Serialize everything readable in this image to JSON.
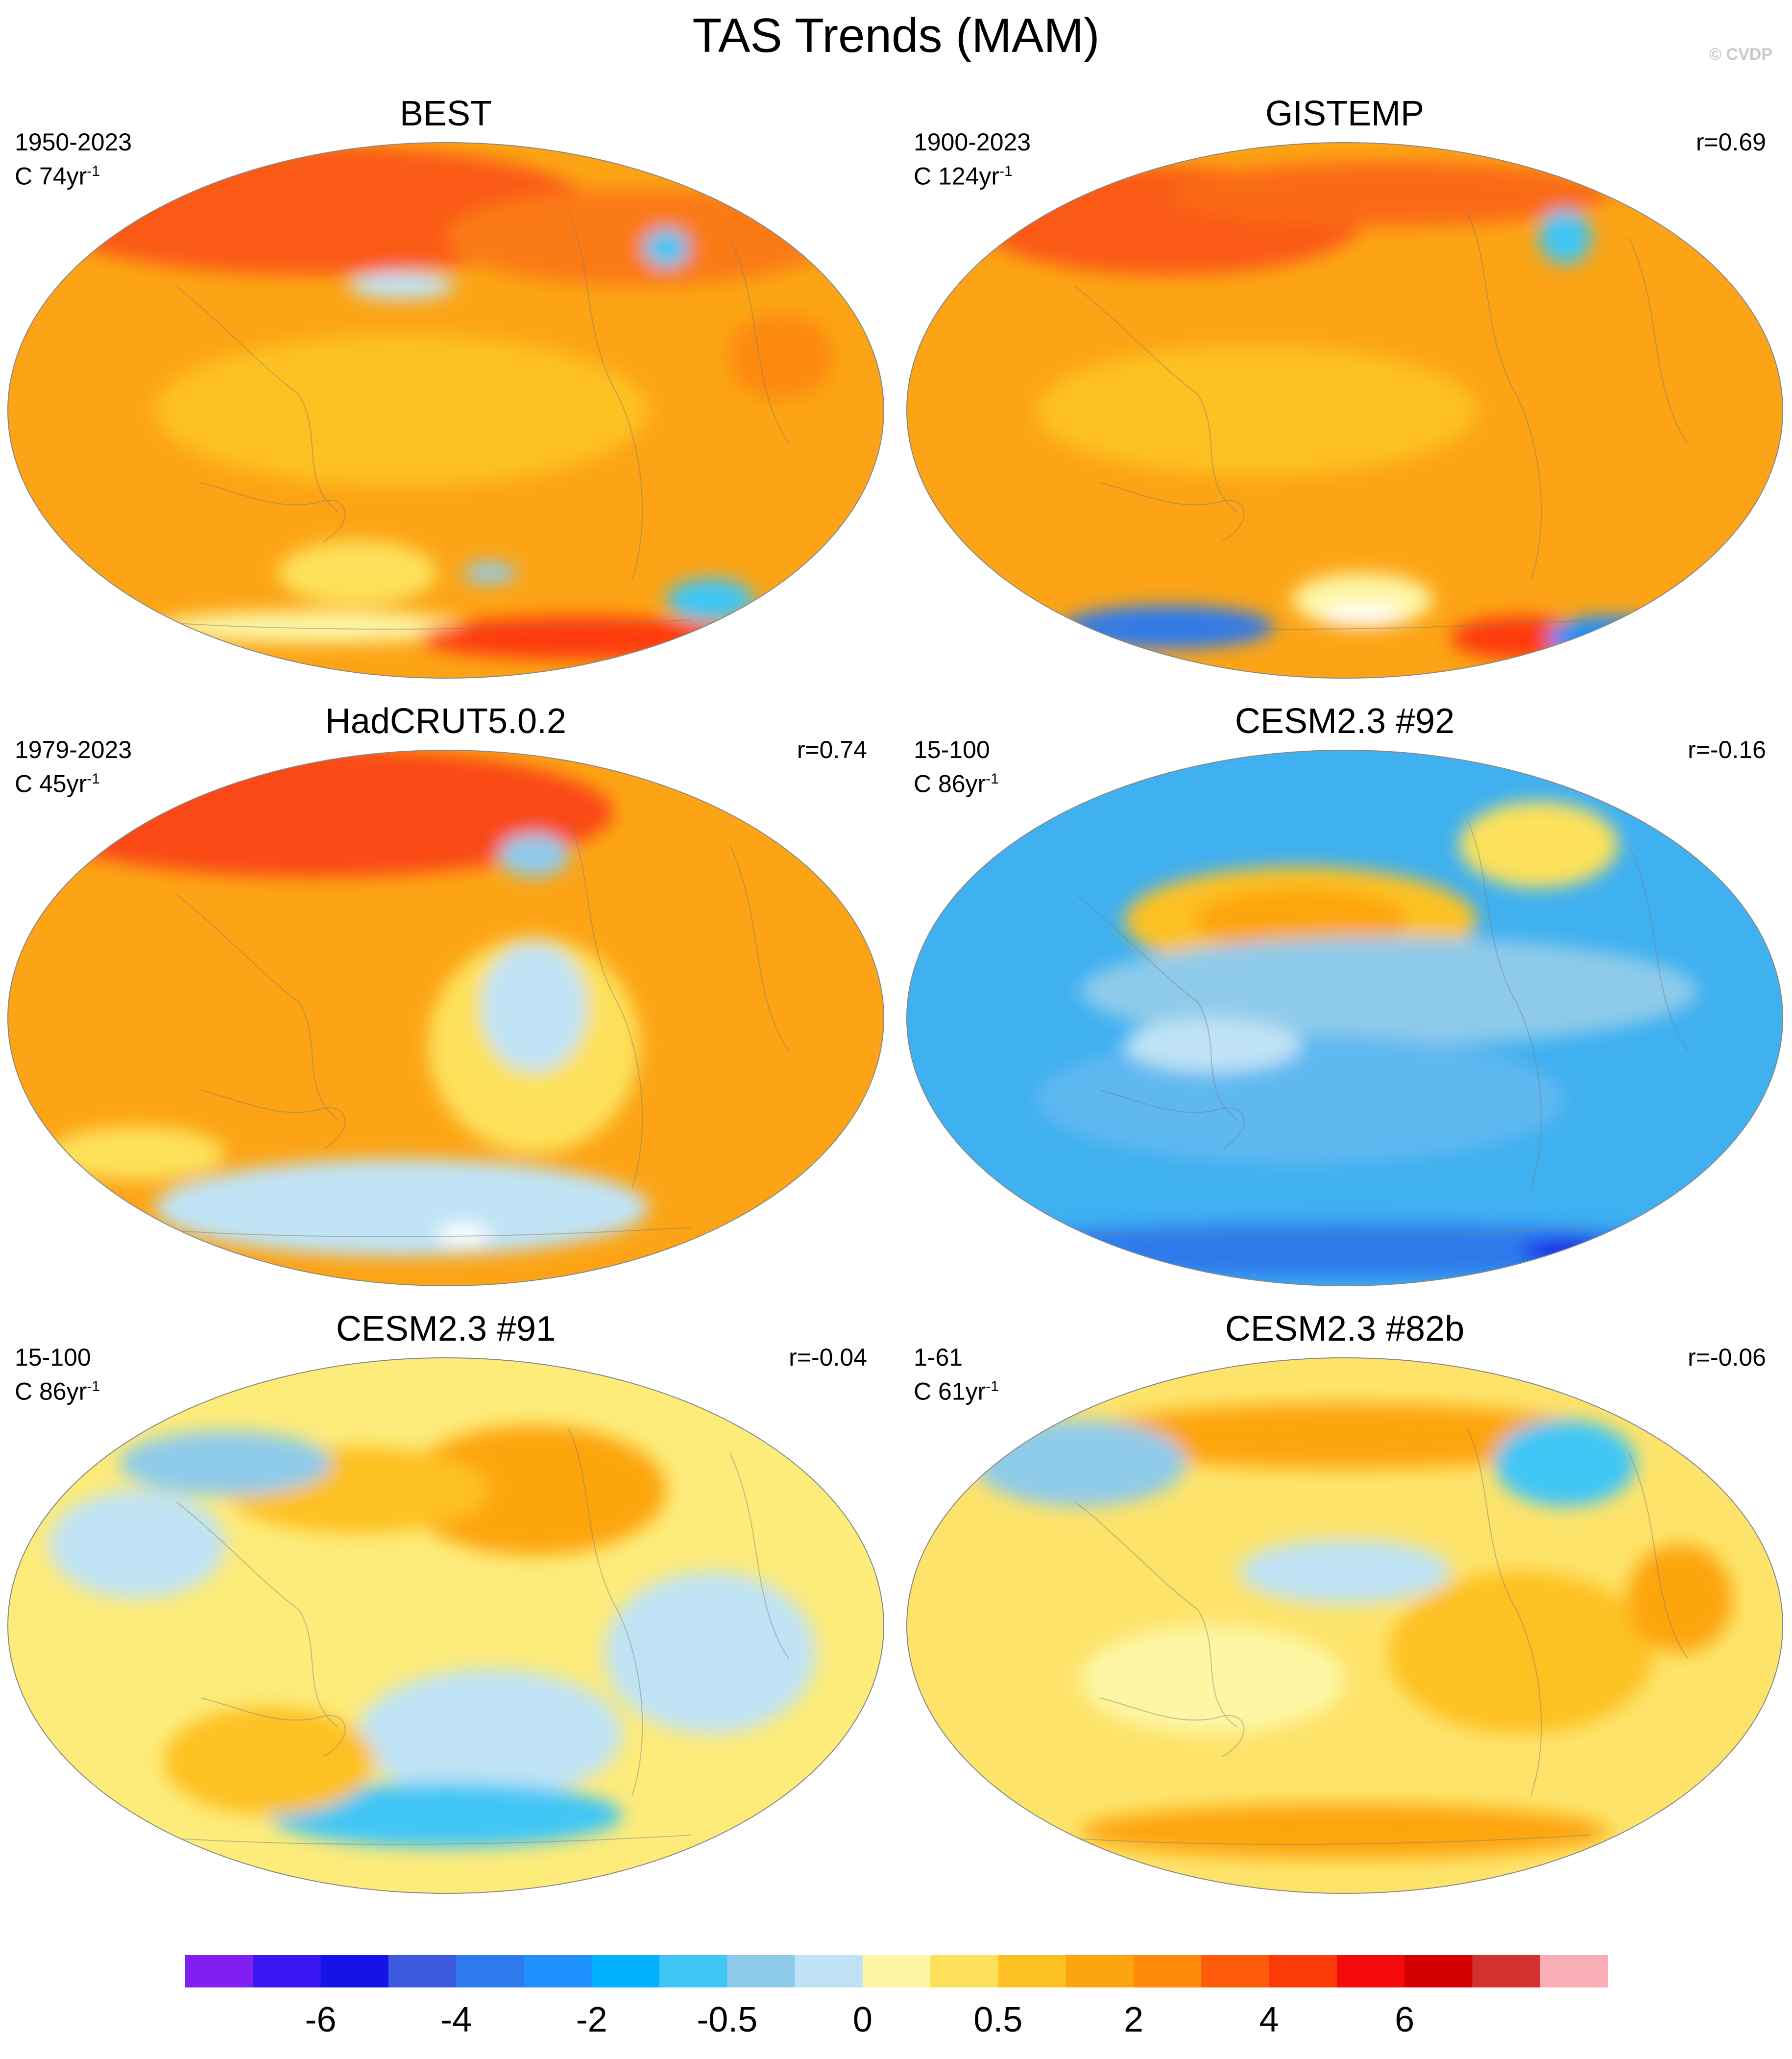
{
  "figure": {
    "title": "TAS Trends (MAM)",
    "watermark": "© CVDP"
  },
  "panels": [
    {
      "title": "BEST",
      "years": "1950-2023",
      "trend_label": "C 74yr",
      "trend_exp": "-1",
      "corr": ""
    },
    {
      "title": "GISTEMP",
      "years": "1900-2023",
      "trend_label": "C 124yr",
      "trend_exp": "-1",
      "corr": "r=0.69"
    },
    {
      "title": "HadCRUT5.0.2",
      "years": "1979-2023",
      "trend_label": "C 45yr",
      "trend_exp": "-1",
      "corr": "r=0.74"
    },
    {
      "title": "CESM2.3 #92",
      "years": "15-100",
      "trend_label": "C 86yr",
      "trend_exp": "-1",
      "corr": "r=-0.16"
    },
    {
      "title": "CESM2.3 #91",
      "years": "15-100",
      "trend_label": "C 86yr",
      "trend_exp": "-1",
      "corr": "r=-0.04"
    },
    {
      "title": "CESM2.3 #82b",
      "years": "1-61",
      "trend_label": "C 61yr",
      "trend_exp": "-1",
      "corr": "r=-0.06"
    }
  ],
  "chart_data": {
    "type": "heatmap",
    "title": "TAS Trends (MAM)",
    "projection": "Winkel tripel global maps",
    "colorbar": {
      "colors": [
        "#7f1ff0",
        "#3a17f5",
        "#1414e8",
        "#3b5ae0",
        "#2f7aec",
        "#1e90ff",
        "#00b2ff",
        "#3fc6f5",
        "#8ecbea",
        "#bfe3f5",
        "#fdf6a5",
        "#fde15a",
        "#fdc124",
        "#fda511",
        "#fd8a0a",
        "#fd5b0a",
        "#fd3a0a",
        "#f50a0a",
        "#d40000",
        "#d43030",
        "#f9aeb5"
      ],
      "tick_labels": [
        "-6",
        "-4",
        "-2",
        "-0.5",
        "0",
        "0.5",
        "2",
        "4",
        "6"
      ],
      "tick_boundary_index": [
        2,
        4,
        6,
        8,
        10,
        12,
        14,
        16,
        18
      ]
    },
    "panel_fields": [
      {
        "name": "BEST",
        "base": "#fca415",
        "blobs": [
          {
            "cx": 0.35,
            "cy": 0.13,
            "rx": 0.32,
            "ry": 0.12,
            "c": "#fa5a16"
          },
          {
            "cx": 0.72,
            "cy": 0.18,
            "rx": 0.22,
            "ry": 0.09,
            "c": "#fa7a16"
          },
          {
            "cx": 0.45,
            "cy": 0.27,
            "rx": 0.06,
            "ry": 0.025,
            "c": "#bfe3f5"
          },
          {
            "cx": 0.75,
            "cy": 0.2,
            "rx": 0.025,
            "ry": 0.035,
            "c": "#3fc6f5"
          },
          {
            "cx": 0.45,
            "cy": 0.5,
            "rx": 0.28,
            "ry": 0.14,
            "c": "#fdc124"
          },
          {
            "cx": 0.4,
            "cy": 0.8,
            "rx": 0.09,
            "ry": 0.06,
            "c": "#fde15a"
          },
          {
            "cx": 0.55,
            "cy": 0.8,
            "rx": 0.03,
            "ry": 0.02,
            "c": "#8ecbea"
          },
          {
            "cx": 0.35,
            "cy": 0.9,
            "rx": 0.18,
            "ry": 0.03,
            "c": "#fdf6a5"
          },
          {
            "cx": 0.65,
            "cy": 0.92,
            "rx": 0.18,
            "ry": 0.04,
            "c": "#fd3a0a"
          },
          {
            "cx": 0.8,
            "cy": 0.85,
            "rx": 0.05,
            "ry": 0.04,
            "c": "#3fc6f5"
          },
          {
            "cx": 0.88,
            "cy": 0.4,
            "rx": 0.06,
            "ry": 0.08,
            "c": "#fd8a0a"
          }
        ]
      },
      {
        "name": "GISTEMP",
        "base": "#fca415",
        "blobs": [
          {
            "cx": 0.3,
            "cy": 0.15,
            "rx": 0.22,
            "ry": 0.1,
            "c": "#fa5a16"
          },
          {
            "cx": 0.55,
            "cy": 0.1,
            "rx": 0.25,
            "ry": 0.06,
            "c": "#fa6a16"
          },
          {
            "cx": 0.75,
            "cy": 0.18,
            "rx": 0.03,
            "ry": 0.05,
            "c": "#3fc6f5"
          },
          {
            "cx": 0.4,
            "cy": 0.5,
            "rx": 0.25,
            "ry": 0.12,
            "c": "#fdc124"
          },
          {
            "cx": 0.3,
            "cy": 0.9,
            "rx": 0.12,
            "ry": 0.04,
            "c": "#2f7aec"
          },
          {
            "cx": 0.52,
            "cy": 0.85,
            "rx": 0.08,
            "ry": 0.05,
            "c": "#fdf6a5"
          },
          {
            "cx": 0.52,
            "cy": 0.88,
            "rx": 0.05,
            "ry": 0.02,
            "c": "#ffffff"
          },
          {
            "cx": 0.7,
            "cy": 0.92,
            "rx": 0.08,
            "ry": 0.04,
            "c": "#fd3a0a"
          },
          {
            "cx": 0.8,
            "cy": 0.92,
            "rx": 0.07,
            "ry": 0.04,
            "c": "#1e90ff"
          }
        ]
      },
      {
        "name": "HadCRUT5.0.2",
        "base": "#fca415",
        "blobs": [
          {
            "cx": 0.35,
            "cy": 0.12,
            "rx": 0.34,
            "ry": 0.12,
            "c": "#fa4a16"
          },
          {
            "cx": 0.6,
            "cy": 0.55,
            "rx": 0.12,
            "ry": 0.2,
            "c": "#fde15a"
          },
          {
            "cx": 0.6,
            "cy": 0.48,
            "rx": 0.06,
            "ry": 0.12,
            "c": "#bfe3f5"
          },
          {
            "cx": 0.6,
            "cy": 0.2,
            "rx": 0.04,
            "ry": 0.04,
            "c": "#8ecbea"
          },
          {
            "cx": 0.45,
            "cy": 0.85,
            "rx": 0.28,
            "ry": 0.09,
            "c": "#bfe3f5"
          },
          {
            "cx": 0.52,
            "cy": 0.9,
            "rx": 0.03,
            "ry": 0.02,
            "c": "#ffffff"
          },
          {
            "cx": 0.15,
            "cy": 0.75,
            "rx": 0.1,
            "ry": 0.05,
            "c": "#fde15a"
          }
        ]
      },
      {
        "name": "CESM2.3 #92",
        "base": "#3fb0f0",
        "blobs": [
          {
            "cx": 0.45,
            "cy": 0.32,
            "rx": 0.2,
            "ry": 0.1,
            "c": "#fdc124"
          },
          {
            "cx": 0.45,
            "cy": 0.32,
            "rx": 0.12,
            "ry": 0.06,
            "c": "#fda511"
          },
          {
            "cx": 0.72,
            "cy": 0.18,
            "rx": 0.09,
            "ry": 0.08,
            "c": "#fde15a"
          },
          {
            "cx": 0.55,
            "cy": 0.45,
            "rx": 0.35,
            "ry": 0.1,
            "c": "#8ecbea"
          },
          {
            "cx": 0.45,
            "cy": 0.65,
            "rx": 0.3,
            "ry": 0.12,
            "c": "#5fb8f0"
          },
          {
            "cx": 0.5,
            "cy": 0.93,
            "rx": 0.45,
            "ry": 0.05,
            "c": "#2f7aec"
          },
          {
            "cx": 0.75,
            "cy": 0.93,
            "rx": 0.05,
            "ry": 0.02,
            "c": "#1414e8"
          },
          {
            "cx": 0.35,
            "cy": 0.55,
            "rx": 0.1,
            "ry": 0.05,
            "c": "#bfe3f5"
          }
        ]
      },
      {
        "name": "CESM2.3 #91",
        "base": "#fdeb7a",
        "blobs": [
          {
            "cx": 0.6,
            "cy": 0.25,
            "rx": 0.15,
            "ry": 0.12,
            "c": "#fda511"
          },
          {
            "cx": 0.4,
            "cy": 0.25,
            "rx": 0.15,
            "ry": 0.08,
            "c": "#fdc124"
          },
          {
            "cx": 0.25,
            "cy": 0.2,
            "rx": 0.12,
            "ry": 0.06,
            "c": "#8ecbea"
          },
          {
            "cx": 0.15,
            "cy": 0.35,
            "rx": 0.1,
            "ry": 0.1,
            "c": "#bfe3f5"
          },
          {
            "cx": 0.55,
            "cy": 0.7,
            "rx": 0.15,
            "ry": 0.12,
            "c": "#bfe3f5"
          },
          {
            "cx": 0.5,
            "cy": 0.85,
            "rx": 0.2,
            "ry": 0.06,
            "c": "#3fc6f5"
          },
          {
            "cx": 0.3,
            "cy": 0.75,
            "rx": 0.12,
            "ry": 0.1,
            "c": "#fdc124"
          },
          {
            "cx": 0.8,
            "cy": 0.55,
            "rx": 0.12,
            "ry": 0.15,
            "c": "#bfe3f5"
          }
        ]
      },
      {
        "name": "CESM2.3 #82b",
        "base": "#fde36a",
        "blobs": [
          {
            "cx": 0.5,
            "cy": 0.15,
            "rx": 0.3,
            "ry": 0.06,
            "c": "#fda511"
          },
          {
            "cx": 0.2,
            "cy": 0.2,
            "rx": 0.12,
            "ry": 0.08,
            "c": "#8ecbea"
          },
          {
            "cx": 0.75,
            "cy": 0.2,
            "rx": 0.08,
            "ry": 0.08,
            "c": "#3fc6f5"
          },
          {
            "cx": 0.5,
            "cy": 0.4,
            "rx": 0.12,
            "ry": 0.06,
            "c": "#bfe3f5"
          },
          {
            "cx": 0.7,
            "cy": 0.55,
            "rx": 0.15,
            "ry": 0.15,
            "c": "#fdc124"
          },
          {
            "cx": 0.35,
            "cy": 0.6,
            "rx": 0.15,
            "ry": 0.1,
            "c": "#fdf6a5"
          },
          {
            "cx": 0.5,
            "cy": 0.88,
            "rx": 0.3,
            "ry": 0.05,
            "c": "#fda511"
          },
          {
            "cx": 0.88,
            "cy": 0.45,
            "rx": 0.06,
            "ry": 0.1,
            "c": "#fda511"
          }
        ]
      }
    ]
  }
}
